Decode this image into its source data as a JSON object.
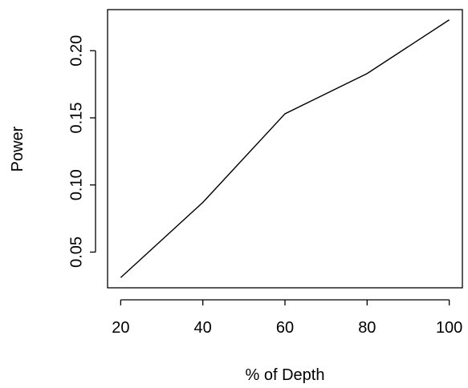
{
  "chart_data": {
    "type": "line",
    "title": "",
    "xlabel": "% of Depth",
    "ylabel": "Power",
    "x": [
      20,
      40,
      60,
      80,
      100
    ],
    "series": [
      {
        "values": [
          0.031,
          0.087,
          0.153,
          0.183,
          0.223
        ]
      }
    ],
    "xticks": [
      20,
      40,
      60,
      80,
      100
    ],
    "xtick_labels": [
      "20",
      "40",
      "60",
      "80",
      "100"
    ],
    "yticks": [
      0.05,
      0.1,
      0.15,
      0.2
    ],
    "ytick_labels": [
      "0.05",
      "0.10",
      "0.15",
      "0.20"
    ],
    "xlim": [
      16.8,
      103.2
    ],
    "ylim": [
      0.0234,
      0.2306
    ],
    "grid": false,
    "line_color": "#000000"
  }
}
